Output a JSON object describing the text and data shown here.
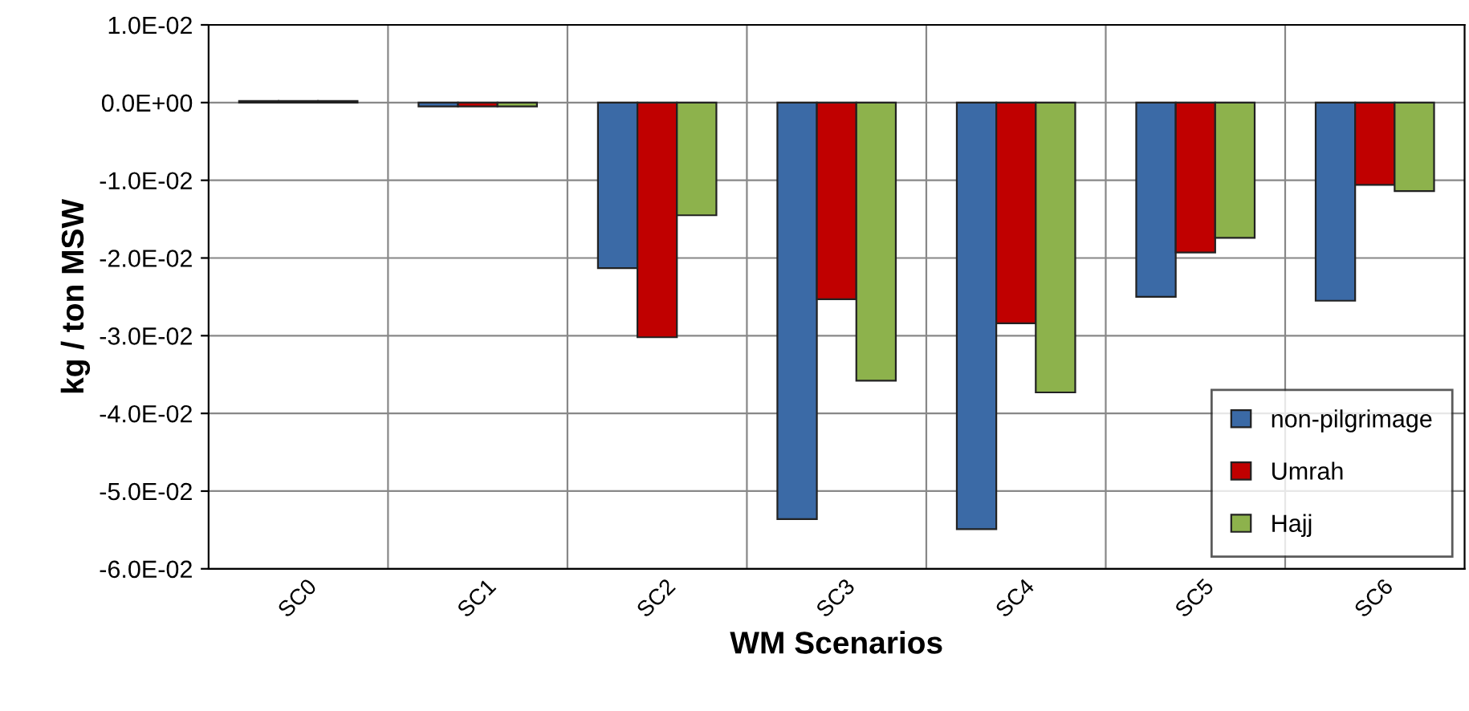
{
  "chart_data": {
    "type": "bar",
    "xlabel": "WM Scenarios",
    "ylabel": "kg / ton MSW",
    "categories": [
      "SC0",
      "SC1",
      "SC2",
      "SC3",
      "SC4",
      "SC5",
      "SC6"
    ],
    "series": [
      {
        "name": "non-pilgrimage",
        "color": "#3b6aa6",
        "values": [
          0.0002,
          -0.0005,
          -0.0213,
          -0.0536,
          -0.0549,
          -0.025,
          -0.0255
        ]
      },
      {
        "name": "Umrah",
        "color": "#c00000",
        "values": [
          0.0002,
          -0.0005,
          -0.0302,
          -0.0253,
          -0.0284,
          -0.0193,
          -0.0106
        ]
      },
      {
        "name": "Hajj",
        "color": "#8db24c",
        "values": [
          0.0002,
          -0.0005,
          -0.0145,
          -0.0358,
          -0.0373,
          -0.0174,
          -0.0114
        ]
      }
    ],
    "ylim": [
      -0.06,
      0.01
    ],
    "yticks": [
      {
        "value": 0.01,
        "label": "1.0E-02"
      },
      {
        "value": 0,
        "label": "0.0E+00"
      },
      {
        "value": -0.01,
        "label": "-1.0E-02"
      },
      {
        "value": -0.02,
        "label": "-2.0E-02"
      },
      {
        "value": -0.03,
        "label": "-3.0E-02"
      },
      {
        "value": -0.04,
        "label": "-4.0E-02"
      },
      {
        "value": -0.05,
        "label": "-5.0E-02"
      },
      {
        "value": -0.06,
        "label": "-6.0E-02"
      }
    ],
    "grid": true,
    "legend": "lower right"
  }
}
